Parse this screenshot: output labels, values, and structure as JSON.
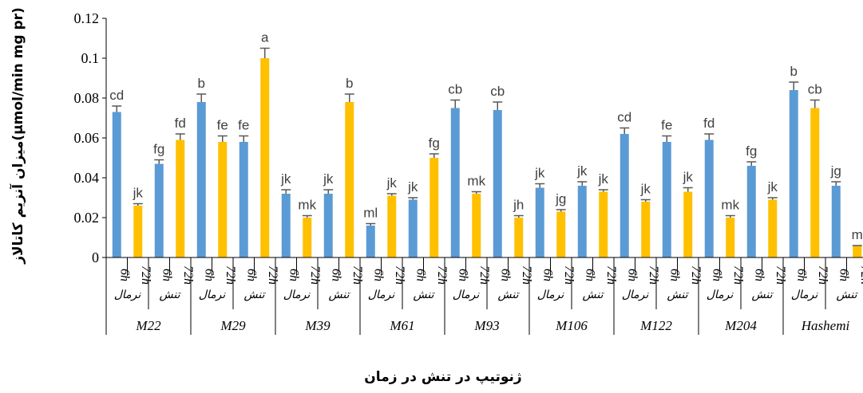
{
  "chart_data": {
    "type": "bar",
    "xlabel": "ژنوتیپ در تنش در زمان",
    "ylabel": "میزان آنزیم کاتالاز(µmol/min mg pr)",
    "ylim": [
      0,
      0.12
    ],
    "yticks": [
      "0",
      "0.02",
      "0.04",
      "0.06",
      "0.08",
      "0.1",
      "0.12"
    ],
    "colors": {
      "6h": "#5B9BD5",
      "72h": "#FFC000",
      "error": "#595959"
    },
    "genotypes": [
      "M22",
      "M29",
      "M39",
      "M61",
      "M93",
      "M106",
      "M122",
      "M204",
      "Hashemi"
    ],
    "conditions": [
      "نرمال",
      "تنش"
    ],
    "times": [
      "6h",
      "72h"
    ],
    "values": [
      [
        0.073,
        0.026,
        0.047,
        0.059
      ],
      [
        0.078,
        0.058,
        0.058,
        0.1
      ],
      [
        0.032,
        0.02,
        0.032,
        0.078
      ],
      [
        0.016,
        0.031,
        0.029,
        0.05
      ],
      [
        0.075,
        0.032,
        0.074,
        0.02
      ],
      [
        0.035,
        0.023,
        0.036,
        0.033
      ],
      [
        0.062,
        0.028,
        0.058,
        0.033
      ],
      [
        0.059,
        0.02,
        0.046,
        0.029
      ],
      [
        0.084,
        0.075,
        0.036,
        0.006
      ]
    ],
    "errors": [
      [
        0.003,
        0.001,
        0.002,
        0.003
      ],
      [
        0.004,
        0.003,
        0.003,
        0.005
      ],
      [
        0.002,
        0.001,
        0.002,
        0.004
      ],
      [
        0.001,
        0.001,
        0.001,
        0.002
      ],
      [
        0.004,
        0.001,
        0.004,
        0.001
      ],
      [
        0.002,
        0.001,
        0.002,
        0.001
      ],
      [
        0.003,
        0.001,
        0.003,
        0.002
      ],
      [
        0.003,
        0.001,
        0.002,
        0.001
      ],
      [
        0.004,
        0.004,
        0.002,
        0.0
      ]
    ],
    "letters": [
      [
        "cd",
        "jk",
        "fg",
        "fd"
      ],
      [
        "b",
        "fe",
        "fe",
        "a"
      ],
      [
        "jk",
        "mk",
        "jk",
        "b"
      ],
      [
        "ml",
        "jk",
        "jk",
        "fg"
      ],
      [
        "cb",
        "mk",
        "cb",
        "jh"
      ],
      [
        "jk",
        "jg",
        "jk",
        "jk"
      ],
      [
        "cd",
        "jk",
        "fe",
        "jk"
      ],
      [
        "fd",
        "mk",
        "fg",
        "jk"
      ],
      [
        "b",
        "cb",
        "jg",
        "m"
      ]
    ],
    "grid": false,
    "legend": "none"
  }
}
